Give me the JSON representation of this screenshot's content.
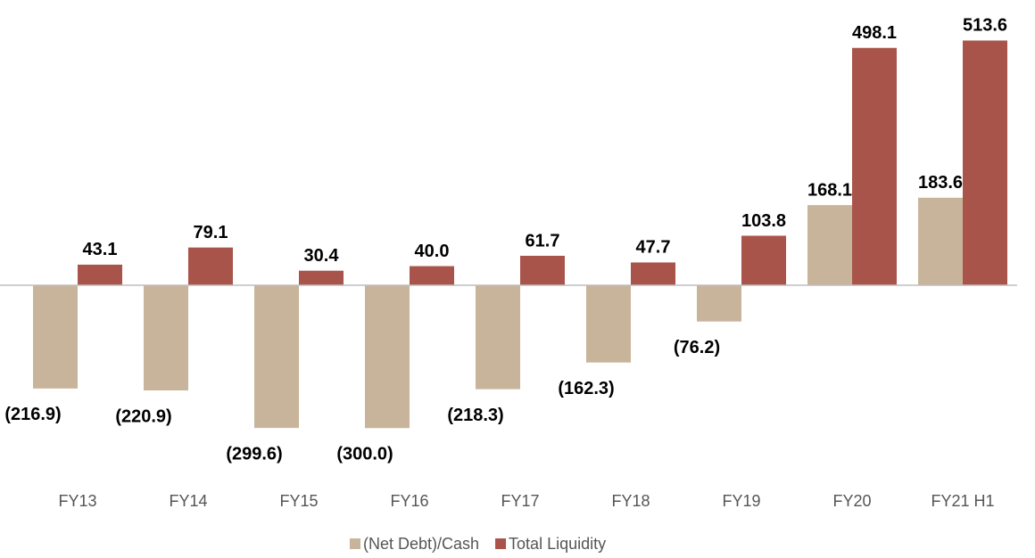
{
  "chart_data": {
    "type": "bar",
    "categories": [
      "FY13",
      "FY14",
      "FY15",
      "FY16",
      "FY17",
      "FY18",
      "FY19",
      "FY20",
      "FY21 H1"
    ],
    "series": [
      {
        "name": "(Net Debt)/Cash",
        "color": "#c8b49a",
        "values": [
          -216.9,
          -220.9,
          -299.6,
          -300.0,
          -218.3,
          -162.3,
          -76.2,
          168.1,
          183.6
        ],
        "value_labels": [
          "(216.9)",
          "(220.9)",
          "(299.6)",
          "(300.0)",
          "(218.3)",
          "(162.3)",
          "(76.2)",
          "168.1",
          "183.6"
        ]
      },
      {
        "name": "Total Liquidity",
        "color": "#a9544a",
        "values": [
          43.1,
          79.1,
          30.4,
          40.0,
          61.7,
          47.7,
          103.8,
          498.1,
          513.6
        ],
        "value_labels": [
          "43.1",
          "79.1",
          "30.4",
          "40.0",
          "61.7",
          "47.7",
          "103.8",
          "498.1",
          "513.6"
        ]
      }
    ],
    "ylim": [
      -350,
      550
    ],
    "legend": "bottom"
  }
}
